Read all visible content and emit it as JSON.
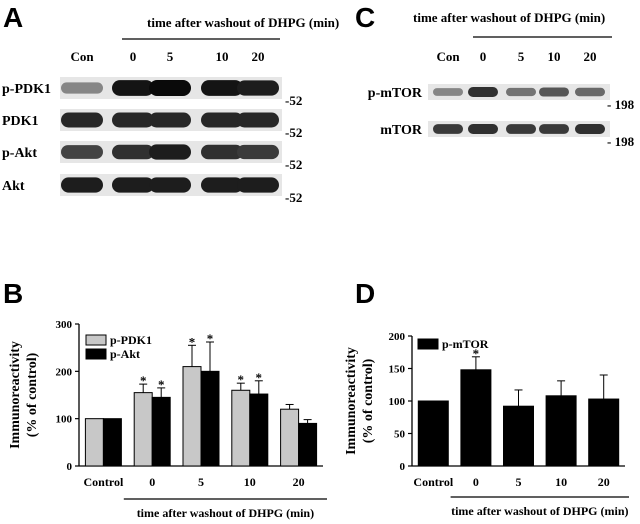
{
  "panels": {
    "a": "A",
    "b": "B",
    "c": "C",
    "d": "D"
  },
  "blot_a": {
    "header": "time after washout of DHPG (min)",
    "lanes": [
      "Con",
      "0",
      "5",
      "10",
      "20"
    ],
    "rows": [
      {
        "label": "p-PDK1",
        "marker": "-52",
        "intensity": [
          0.35,
          0.95,
          1.0,
          0.95,
          0.9
        ]
      },
      {
        "label": "PDK1",
        "marker": "-52",
        "intensity": [
          0.85,
          0.85,
          0.85,
          0.85,
          0.85
        ]
      },
      {
        "label": "p-Akt",
        "marker": "-52",
        "intensity": [
          0.7,
          0.8,
          0.9,
          0.8,
          0.75
        ]
      },
      {
        "label": "Akt",
        "marker": "-52",
        "intensity": [
          0.9,
          0.9,
          0.9,
          0.9,
          0.9
        ]
      }
    ]
  },
  "blot_c": {
    "header": "time after washout of DHPG (min)",
    "lanes": [
      "Con",
      "0",
      "5",
      "10",
      "20"
    ],
    "rows": [
      {
        "label": "p-mTOR",
        "marker": "- 198",
        "intensity": [
          0.35,
          0.8,
          0.45,
          0.6,
          0.5
        ]
      },
      {
        "label": "mTOR",
        "marker": "- 198",
        "intensity": [
          0.75,
          0.8,
          0.75,
          0.75,
          0.8
        ]
      }
    ]
  },
  "chart_data": [
    {
      "type": "bar",
      "panel": "B",
      "categories": [
        "Control",
        "0",
        "5",
        "10",
        "20"
      ],
      "xlabel": "time after washout of DHPG (min)",
      "ylabel": "Immunoreactivity\n(% of control)",
      "ylim": [
        0,
        300
      ],
      "yticks": [
        0,
        100,
        200,
        300
      ],
      "legend_position": "top-left",
      "series": [
        {
          "name": "p-PDK1",
          "color": "#c8c8c8",
          "values": [
            100,
            155,
            210,
            160,
            120
          ],
          "errors": [
            0,
            18,
            45,
            15,
            10
          ],
          "significant": [
            false,
            true,
            true,
            true,
            false
          ]
        },
        {
          "name": "p-Akt",
          "color": "#000000",
          "values": [
            100,
            145,
            200,
            152,
            90
          ],
          "errors": [
            0,
            20,
            62,
            28,
            8
          ],
          "significant": [
            false,
            true,
            true,
            true,
            false
          ]
        }
      ]
    },
    {
      "type": "bar",
      "panel": "D",
      "categories": [
        "Control",
        "0",
        "5",
        "10",
        "20"
      ],
      "xlabel": "time after washout of DHPG (min)",
      "ylabel": "Immunoreactivity\n(% of control)",
      "ylim": [
        0,
        200
      ],
      "yticks": [
        0,
        50,
        100,
        150,
        200
      ],
      "legend_position": "top-left",
      "series": [
        {
          "name": "p-mTOR",
          "color": "#000000",
          "values": [
            100,
            148,
            92,
            108,
            103
          ],
          "errors": [
            0,
            20,
            25,
            23,
            37
          ],
          "significant": [
            false,
            true,
            false,
            false,
            false
          ]
        }
      ]
    }
  ],
  "significance_symbol": "*"
}
